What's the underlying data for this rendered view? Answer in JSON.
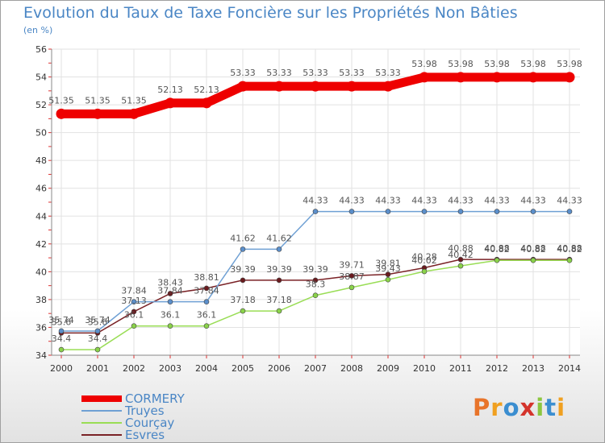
{
  "title": "Evolution du Taux de Taxe Foncière sur les Propriétés Non Bâties",
  "subtitle": "(en %)",
  "brand": {
    "letters": [
      "P",
      "r",
      "o",
      "x",
      "i",
      "t",
      "i"
    ],
    "colors": [
      "#e8742a",
      "#f0a020",
      "#3b8ed0",
      "#d4342c",
      "#8cc63f",
      "#3b8ed0",
      "#f0a020"
    ]
  },
  "chart_data": {
    "type": "line",
    "title": "Evolution du Taux de Taxe Foncière sur les Propriétés Non Bâties",
    "ylabel": "(en %)",
    "categories": [
      "2000",
      "2001",
      "2002",
      "2003",
      "2004",
      "2005",
      "2006",
      "2007",
      "2008",
      "2009",
      "2010",
      "2011",
      "2012",
      "2013",
      "2014"
    ],
    "ylim": [
      34,
      56
    ],
    "yticks": [
      "34",
      "36",
      "38",
      "40",
      "42",
      "44",
      "46",
      "48",
      "50",
      "52",
      "54",
      "56"
    ],
    "series": [
      {
        "name": "CORMERY",
        "color": "#ee0000",
        "values": [
          51.35,
          51.35,
          51.35,
          52.13,
          52.13,
          53.33,
          53.33,
          53.33,
          53.33,
          53.33,
          53.98,
          53.98,
          53.98,
          53.98,
          53.98
        ],
        "labels": [
          "51.35",
          "51.35",
          "51.35",
          "52.13",
          "52.13",
          "53.33",
          "53.33",
          "53.33",
          "53.33",
          "53.33",
          "53.98",
          "53.98",
          "53.98",
          "53.98",
          "53.98"
        ]
      },
      {
        "name": "Truyes",
        "color": "#6fa0d4",
        "values": [
          35.74,
          35.74,
          37.84,
          37.84,
          37.84,
          41.62,
          41.62,
          44.33,
          44.33,
          44.33,
          44.33,
          44.33,
          44.33,
          44.33,
          44.33
        ],
        "labels": [
          "35.74",
          "35.74",
          "37.84",
          "37.84",
          "37.84",
          "41.62",
          "41.62",
          "44.33",
          "44.33",
          "44.33",
          "44.33",
          "44.33",
          "44.33",
          "44.33",
          "44.33"
        ]
      },
      {
        "name": "Courçay",
        "color": "#99dd55",
        "values": [
          34.4,
          34.4,
          36.1,
          36.1,
          36.1,
          37.18,
          37.18,
          38.3,
          38.87,
          39.43,
          40.02,
          40.42,
          40.82,
          40.82,
          40.82
        ],
        "labels": [
          "34.4",
          "34.4",
          "36.1",
          "36.1",
          "36.1",
          "37.18",
          "37.18",
          "38.3",
          "38.87",
          "39.43",
          "40.02",
          "40.42",
          "40.82",
          "40.82",
          "40.82"
        ]
      },
      {
        "name": "Esvres",
        "color": "#7a2226",
        "values": [
          35.6,
          35.6,
          37.13,
          38.43,
          38.81,
          39.39,
          39.39,
          39.39,
          39.71,
          39.81,
          40.28,
          40.88,
          40.88,
          40.88,
          40.88
        ],
        "labels": [
          "35.6",
          "35.6",
          "37.13",
          "38.43",
          "38.81",
          "39.39",
          "39.39",
          "39.39",
          "39.71",
          "39.81",
          "40.28",
          "40.88",
          "40.88",
          "40.88",
          "40.88"
        ]
      }
    ],
    "legend_position": "bottom-left"
  }
}
